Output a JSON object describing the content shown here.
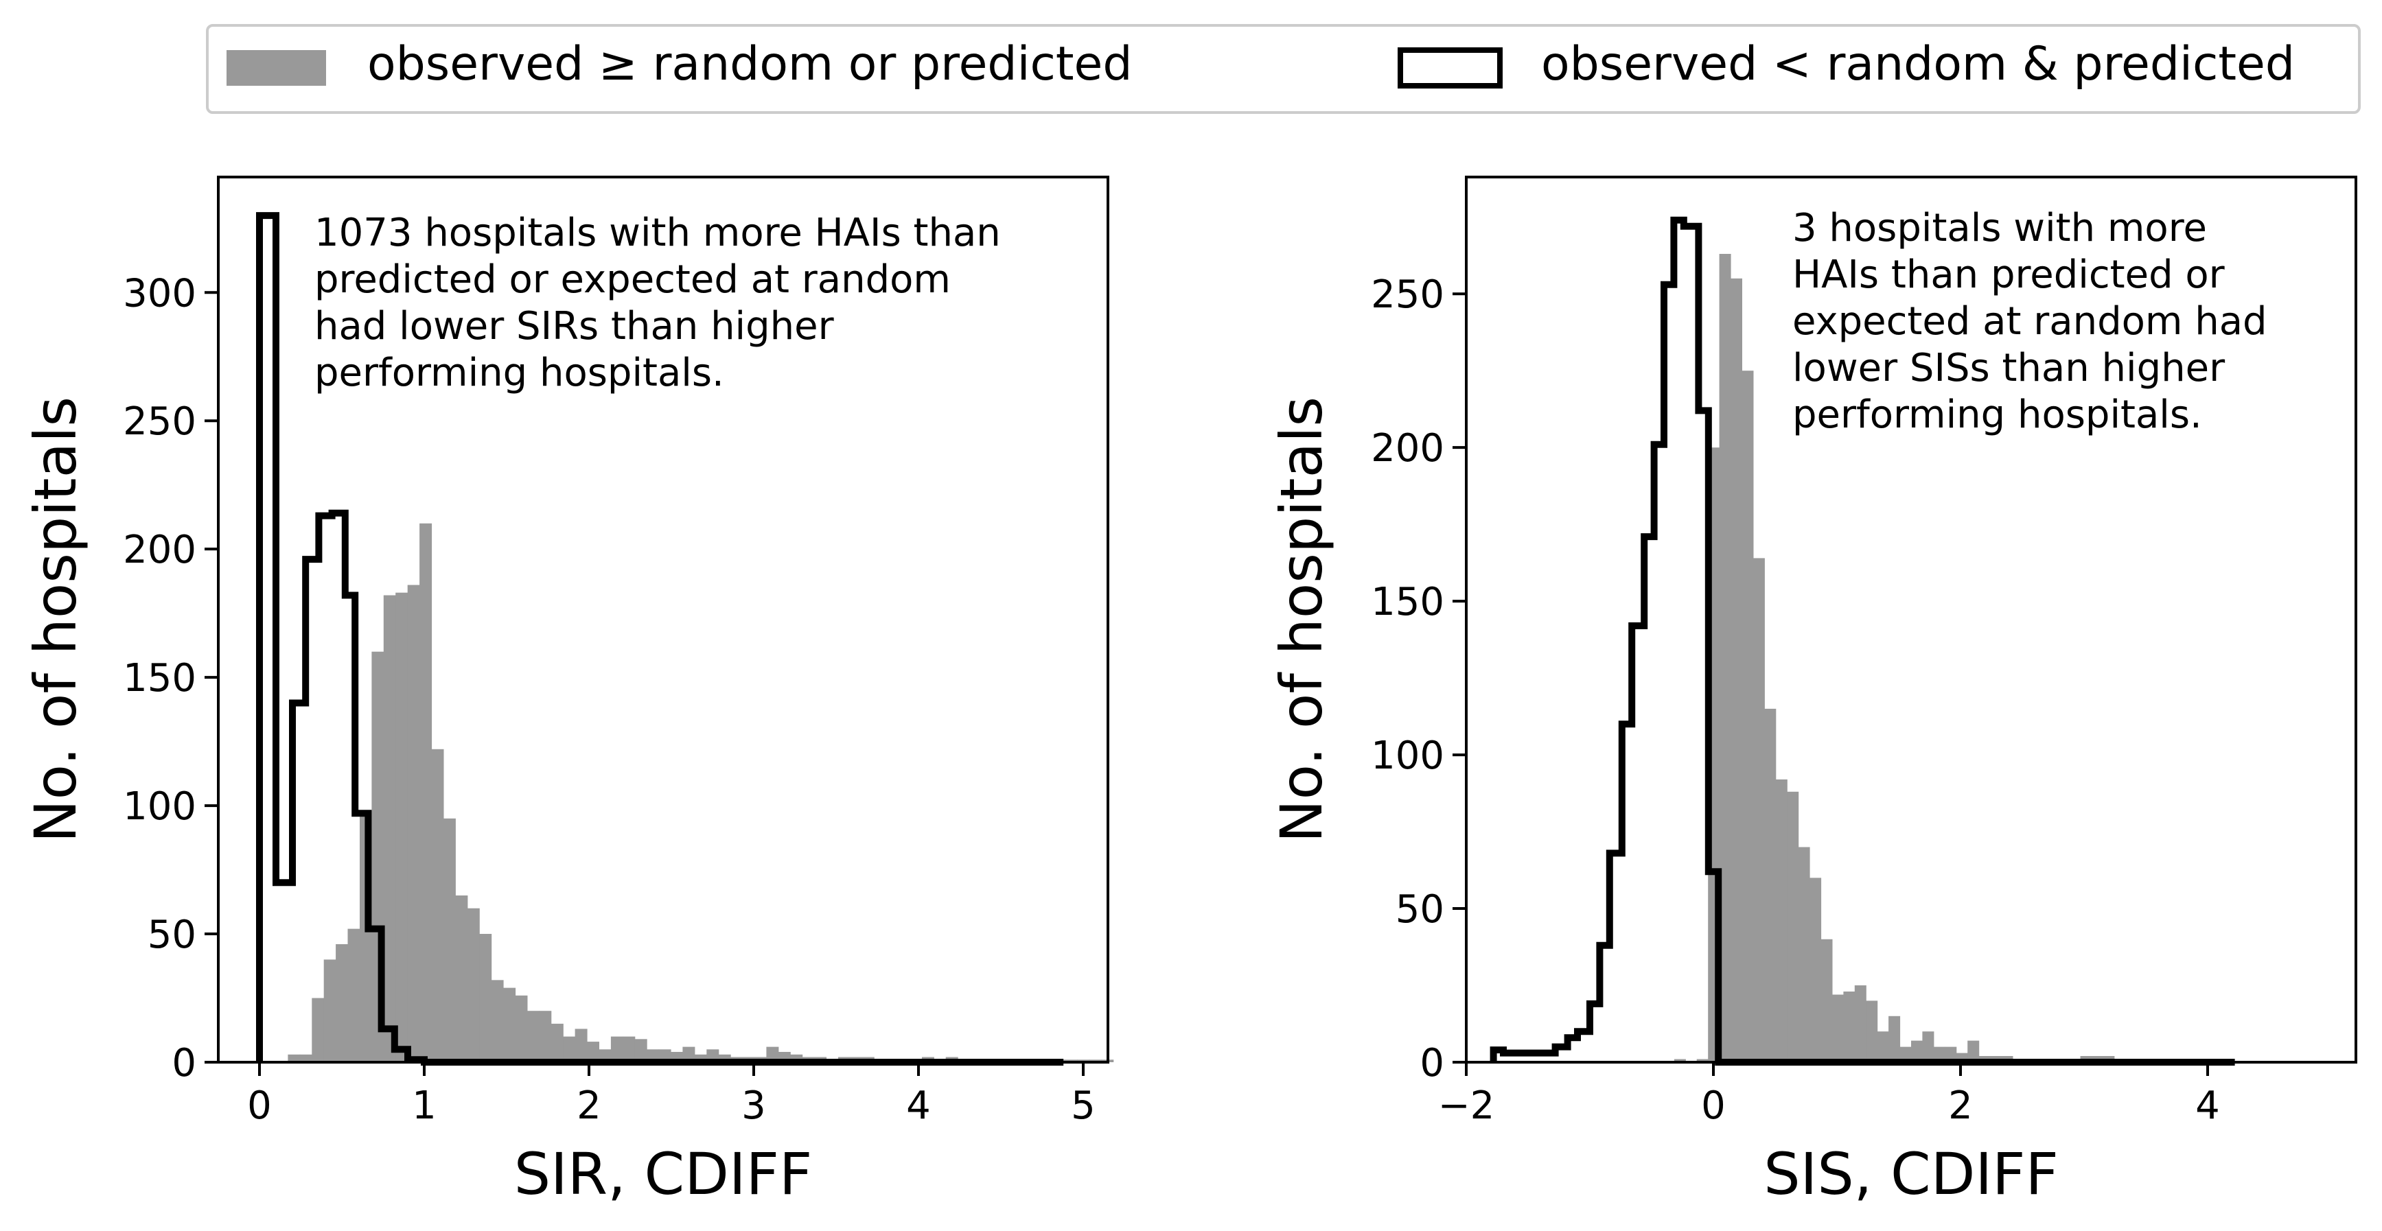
{
  "legend": {
    "filled_label": "observed ≥ random or predicted",
    "outline_label": "observed < random & predicted"
  },
  "colors": {
    "filled": "#999999",
    "outline": "#000000"
  },
  "chart_data": [
    {
      "type": "histogram",
      "xlabel": "SIR, CDIFF",
      "ylabel": "No. of hospitals",
      "xlim": [
        -0.25,
        5.15
      ],
      "ylim": [
        0,
        345
      ],
      "xticks": [
        "0",
        "1",
        "2",
        "3",
        "4",
        "5"
      ],
      "yticks": [
        "0",
        "50",
        "100",
        "150",
        "200",
        "250",
        "300"
      ],
      "annotation": [
        "1073 hospitals with more HAIs than",
        "predicted or expected at random",
        "had lower SIRs than higher",
        "performing hospitals."
      ],
      "legend_position": "above plots",
      "grid": false,
      "series": [
        {
          "name": "observed ≥ random or predicted",
          "style": "filled",
          "bin_start": 0.1,
          "bin_width": 0.0726,
          "values": [
            0,
            3,
            3,
            25,
            40,
            46,
            52,
            98,
            160,
            182,
            183,
            186,
            210,
            122,
            95,
            65,
            60,
            50,
            32,
            29,
            26,
            20,
            20,
            15,
            10,
            13,
            8,
            5,
            10,
            10,
            9,
            5,
            5,
            4,
            6,
            3,
            5,
            3,
            2,
            2,
            2,
            6,
            4,
            3,
            2,
            2,
            1,
            2,
            2,
            2,
            1,
            1,
            1,
            1,
            2,
            1,
            2,
            1,
            1,
            1,
            1,
            1,
            1,
            1,
            1,
            1,
            1,
            1,
            1,
            1
          ]
        },
        {
          "name": "observed < random & predicted",
          "style": "step",
          "edges": [
            0,
            0.1,
            0.2,
            0.28,
            0.36,
            0.44,
            0.52,
            0.58,
            0.66,
            0.74,
            0.82,
            0.9,
            1.0,
            4.88
          ],
          "values": [
            330,
            70,
            140,
            196,
            213,
            214,
            182,
            97,
            52,
            13,
            5,
            1,
            0
          ]
        }
      ]
    },
    {
      "type": "histogram",
      "xlabel": "SIS, CDIFF",
      "ylabel": "No. of hospitals",
      "xlim": [
        -2.0,
        5.2
      ],
      "ylim": [
        0,
        288
      ],
      "xticks": [
        "−2",
        "0",
        "2",
        "4"
      ],
      "yticks": [
        "0",
        "50",
        "100",
        "150",
        "200",
        "250"
      ],
      "annotation": [
        "3 hospitals with more",
        "HAIs than predicted or",
        "expected at random had",
        "lower SISs than higher",
        "performing hospitals."
      ],
      "legend_position": "above plots",
      "grid": false,
      "series": [
        {
          "name": "observed ≥ random or predicted",
          "style": "filled",
          "bin_start": -0.5,
          "bin_width": 0.0913,
          "values": [
            0,
            0,
            1,
            0,
            1,
            200,
            263,
            255,
            225,
            164,
            115,
            92,
            88,
            70,
            60,
            40,
            22,
            23,
            25,
            20,
            10,
            15,
            5,
            7,
            10,
            5,
            5,
            3,
            7,
            2,
            2,
            2,
            1,
            1,
            1,
            1,
            1,
            1,
            2,
            2,
            2,
            1,
            1,
            1,
            1,
            1,
            1,
            1,
            1,
            1
          ]
        },
        {
          "name": "observed < random & predicted",
          "style": "step",
          "edges": [
            -1.78,
            -1.7,
            -1.58,
            -1.48,
            -1.38,
            -1.28,
            -1.18,
            -1.1,
            -1.0,
            -0.92,
            -0.84,
            -0.74,
            -0.66,
            -0.56,
            -0.48,
            -0.4,
            -0.32,
            -0.24,
            -0.12,
            -0.04,
            0.04,
            0.11,
            4.22
          ],
          "values": [
            4,
            3,
            3,
            3,
            3,
            5,
            8,
            10,
            19,
            38,
            68,
            110,
            142,
            171,
            201,
            253,
            274,
            272,
            212,
            62,
            0,
            0
          ]
        }
      ]
    }
  ]
}
